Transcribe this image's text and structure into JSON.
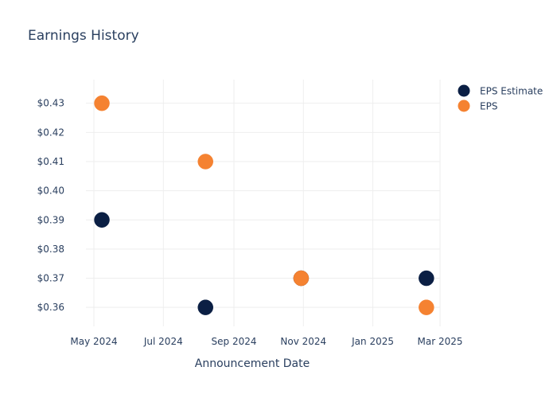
{
  "chart_data": {
    "type": "scatter",
    "title": "Earnings History",
    "xlabel": "Announcement Date",
    "ylabel": "",
    "x_ticks": [
      {
        "date": "2024-05-01",
        "label": "May 2024"
      },
      {
        "date": "2024-07-01",
        "label": "Jul 2024"
      },
      {
        "date": "2024-09-01",
        "label": "Sep 2024"
      },
      {
        "date": "2024-11-01",
        "label": "Nov 2024"
      },
      {
        "date": "2025-01-01",
        "label": "Jan 2025"
      },
      {
        "date": "2025-03-01",
        "label": "Mar 2025"
      }
    ],
    "y_ticks": [
      {
        "value": 0.36,
        "label": "$0.36"
      },
      {
        "value": 0.37,
        "label": "$0.37"
      },
      {
        "value": 0.38,
        "label": "$0.38"
      },
      {
        "value": 0.39,
        "label": "$0.39"
      },
      {
        "value": 0.4,
        "label": "$0.40"
      },
      {
        "value": 0.41,
        "label": "$0.41"
      },
      {
        "value": 0.42,
        "label": "$0.42"
      },
      {
        "value": 0.43,
        "label": "$0.43"
      }
    ],
    "xlim": [
      "2024-04-24",
      "2025-03-01"
    ],
    "ylim": [
      0.3535,
      0.4381
    ],
    "grid": true,
    "legend_position": "top-right",
    "series": [
      {
        "name": "EPS Estimate",
        "color": "#0b1f44",
        "points": [
          {
            "x": "2024-05-08",
            "y": 0.39
          },
          {
            "x": "2024-08-07",
            "y": 0.36
          },
          {
            "x": "2024-10-30",
            "y": 0.37
          },
          {
            "x": "2025-02-17",
            "y": 0.37
          }
        ]
      },
      {
        "name": "EPS",
        "color": "#f58231",
        "points": [
          {
            "x": "2024-05-08",
            "y": 0.43
          },
          {
            "x": "2024-08-07",
            "y": 0.41
          },
          {
            "x": "2024-10-30",
            "y": 0.37
          },
          {
            "x": "2025-02-17",
            "y": 0.36
          }
        ]
      }
    ]
  }
}
